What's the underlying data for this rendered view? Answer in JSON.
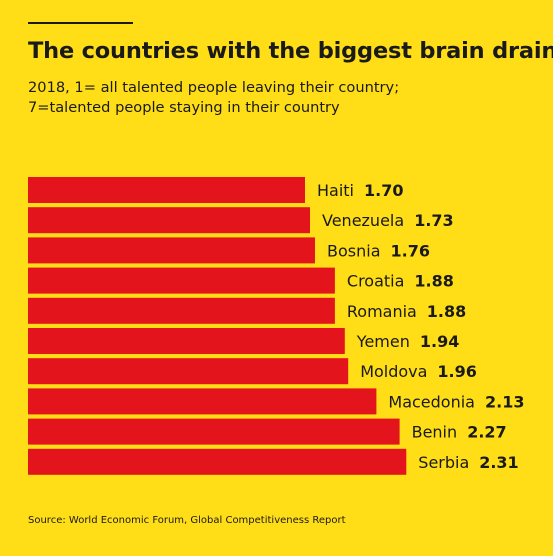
{
  "title": "The countries with the biggest brain drain",
  "subtitle_lines": [
    "2018, 1= all talented people leaving their country;",
    "7=talented people staying in their country"
  ],
  "source": "Source: World Economic Forum, Global Competitiveness Report",
  "colors": {
    "background": "#ffde17",
    "bar": "#e3141b",
    "text": "#1a1a1a"
  },
  "chart_data": {
    "type": "bar",
    "orientation": "horizontal",
    "categories": [
      "Haiti",
      "Venezuela",
      "Bosnia",
      "Croatia",
      "Romania",
      "Yemen",
      "Moldova",
      "Macedonia",
      "Benin",
      "Serbia"
    ],
    "values": [
      1.7,
      1.73,
      1.76,
      1.88,
      1.88,
      1.94,
      1.96,
      2.13,
      2.27,
      2.31
    ],
    "value_labels": [
      "1.70",
      "1.73",
      "1.76",
      "1.88",
      "1.88",
      "1.94",
      "1.96",
      "2.13",
      "2.27",
      "2.31"
    ],
    "grid": false,
    "legend": "none"
  }
}
